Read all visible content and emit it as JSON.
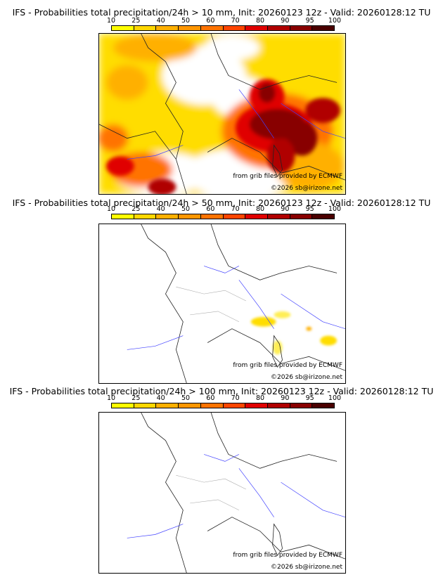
{
  "legend": {
    "ticks": [
      "10",
      "25",
      "40",
      "50",
      "60",
      "70",
      "80",
      "90",
      "95",
      "100"
    ],
    "colors": [
      "#ffff00",
      "#ffd700",
      "#ffb000",
      "#ff9600",
      "#ff7300",
      "#ff4500",
      "#e00000",
      "#b00000",
      "#880000",
      "#4a0000"
    ]
  },
  "panels": [
    {
      "title": "IFS - Probabilities total precipitation/24h > 10 mm, Init: 20260123 12z - Valid: 20260128:12 TU",
      "credit_source": "from grib files provided by ECMWF",
      "credit_copyright": "©2026 sb@irizone.net"
    },
    {
      "title": "IFS - Probabilities total precipitation/24h > 50 mm, Init: 20260123 12z - Valid: 20260128:12 TU",
      "credit_source": "from grib files provided by ECMWF",
      "credit_copyright": "©2026 sb@irizone.net"
    },
    {
      "title": "IFS - Probabilities total precipitation/24h > 100 mm, Init: 20260123 12z - Valid: 20260128:12 TU",
      "credit_source": "from grib files provided by ECMWF",
      "credit_copyright": "©2026 sb@irizone.net"
    }
  ]
}
